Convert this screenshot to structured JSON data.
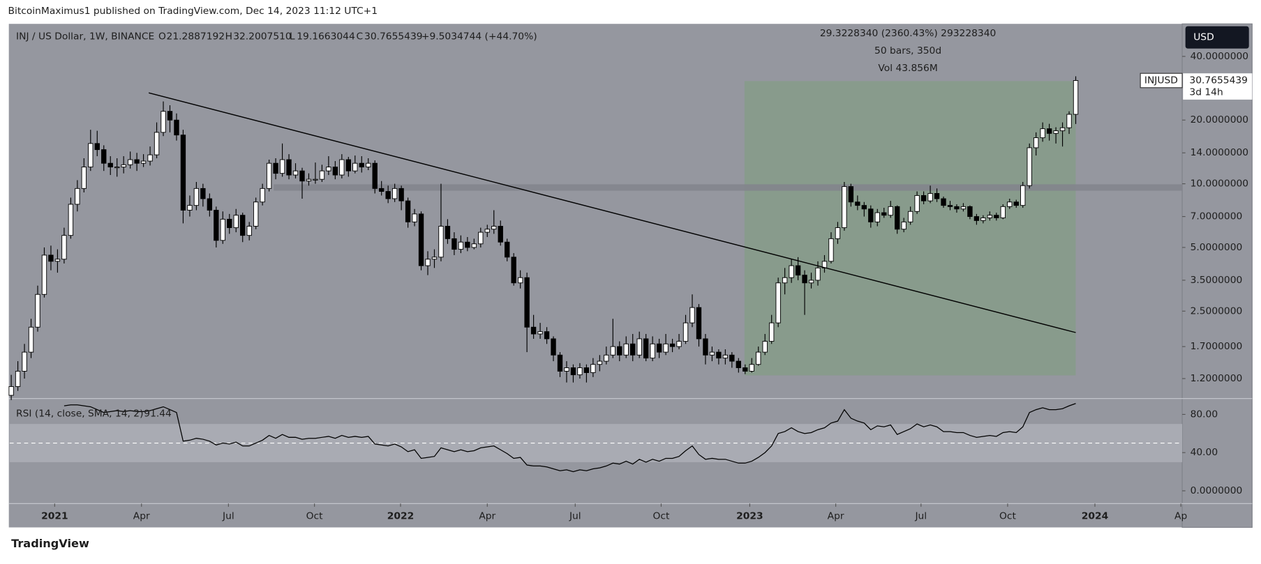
{
  "header": {
    "publisher": "BitcoinMaximus1 published on TradingView.com, Dec 14, 2023 11:12 UTC+1",
    "logo": "TradingView"
  },
  "chart_data": [
    {
      "type": "candlestick",
      "title": "INJ / US Dollar, 1W, BINANCE",
      "legend": {
        "o": "O",
        "open": "21.2887192",
        "h": "H",
        "high": "32.2007510",
        "l": "L",
        "low": "19.1663044",
        "c": "C",
        "close": "30.7655439",
        "change": "+9.5034744 (+44.70%)"
      },
      "currency": "USD",
      "price_tag": {
        "symbol": "INJUSD",
        "value": "30.7655439",
        "countdown": "3d 14h"
      },
      "up_color": "#ffffff",
      "down_color": "#000000",
      "log_scale": true,
      "grid": false,
      "ohlc": [
        [
          1.0,
          1.25,
          0.95,
          1.1
        ],
        [
          1.1,
          1.45,
          1.05,
          1.3
        ],
        [
          1.3,
          1.75,
          1.2,
          1.6
        ],
        [
          1.6,
          2.3,
          1.5,
          2.1
        ],
        [
          2.1,
          3.3,
          2.0,
          3.0
        ],
        [
          3.0,
          5.0,
          2.9,
          4.6
        ],
        [
          4.6,
          5.1,
          3.9,
          4.3
        ],
        [
          4.3,
          4.9,
          3.8,
          4.4
        ],
        [
          4.4,
          6.2,
          4.2,
          5.7
        ],
        [
          5.7,
          8.6,
          5.5,
          8.0
        ],
        [
          8.0,
          10.4,
          7.4,
          9.5
        ],
        [
          9.5,
          13.2,
          9.1,
          12.0
        ],
        [
          12.0,
          18.0,
          11.5,
          15.5
        ],
        [
          15.5,
          17.8,
          13.5,
          14.5
        ],
        [
          14.5,
          15.2,
          11.5,
          12.5
        ],
        [
          12.5,
          13.5,
          11.0,
          12.0
        ],
        [
          12.0,
          13.2,
          10.8,
          12.0
        ],
        [
          12.0,
          13.5,
          11.2,
          12.3
        ],
        [
          12.3,
          14.2,
          11.8,
          13.0
        ],
        [
          13.0,
          14.0,
          11.5,
          12.5
        ],
        [
          12.5,
          13.8,
          12.0,
          12.8
        ],
        [
          12.8,
          15.0,
          12.2,
          13.7
        ],
        [
          13.7,
          19.5,
          13.2,
          17.5
        ],
        [
          17.5,
          24.5,
          16.8,
          22.0
        ],
        [
          22.0,
          23.5,
          17.5,
          20.0
        ],
        [
          20.0,
          21.5,
          16.0,
          17.0
        ],
        [
          17.0,
          18.0,
          6.5,
          7.5
        ],
        [
          7.5,
          8.8,
          7.0,
          7.9
        ],
        [
          7.9,
          10.2,
          7.5,
          9.5
        ],
        [
          9.5,
          10.0,
          7.8,
          8.5
        ],
        [
          8.5,
          9.0,
          7.0,
          7.5
        ],
        [
          7.5,
          7.8,
          5.0,
          5.4
        ],
        [
          5.4,
          7.4,
          5.2,
          6.8
        ],
        [
          6.8,
          7.2,
          5.8,
          6.2
        ],
        [
          6.2,
          7.6,
          5.9,
          7.1
        ],
        [
          7.1,
          7.3,
          5.3,
          5.7
        ],
        [
          5.7,
          6.6,
          5.4,
          6.3
        ],
        [
          6.3,
          8.6,
          6.1,
          8.2
        ],
        [
          8.2,
          10.0,
          7.9,
          9.5
        ],
        [
          9.5,
          13.0,
          9.2,
          12.5
        ],
        [
          12.5,
          13.2,
          10.5,
          11.2
        ],
        [
          11.2,
          15.5,
          10.8,
          13.0
        ],
        [
          13.0,
          13.8,
          10.5,
          11.0
        ],
        [
          11.0,
          12.5,
          10.6,
          11.5
        ],
        [
          11.5,
          11.9,
          8.5,
          10.3
        ],
        [
          10.3,
          11.2,
          9.8,
          10.5
        ],
        [
          10.5,
          12.6,
          10.0,
          10.5
        ],
        [
          10.5,
          12.3,
          10.2,
          11.5
        ],
        [
          11.5,
          13.5,
          11.0,
          12.0
        ],
        [
          12.0,
          12.8,
          10.5,
          11.0
        ],
        [
          11.0,
          13.8,
          10.6,
          13.0
        ],
        [
          13.0,
          13.4,
          10.8,
          11.5
        ],
        [
          11.5,
          13.6,
          11.2,
          12.5
        ],
        [
          12.5,
          13.5,
          11.3,
          12.0
        ],
        [
          12.0,
          13.2,
          11.6,
          12.5
        ],
        [
          12.5,
          12.9,
          9.0,
          9.5
        ],
        [
          9.5,
          10.3,
          8.8,
          9.2
        ],
        [
          9.2,
          9.8,
          8.1,
          8.5
        ],
        [
          8.5,
          10.0,
          8.2,
          9.5
        ],
        [
          9.5,
          9.8,
          7.5,
          8.3
        ],
        [
          8.3,
          8.6,
          6.2,
          6.6
        ],
        [
          6.6,
          7.6,
          6.3,
          7.2
        ],
        [
          7.2,
          7.4,
          3.9,
          4.1
        ],
        [
          4.1,
          4.8,
          3.7,
          4.4
        ],
        [
          4.4,
          4.9,
          4.0,
          4.5
        ],
        [
          4.5,
          10.0,
          4.3,
          6.3
        ],
        [
          6.3,
          6.8,
          5.2,
          5.5
        ],
        [
          5.5,
          5.9,
          4.6,
          4.9
        ],
        [
          4.9,
          5.7,
          4.7,
          5.3
        ],
        [
          5.3,
          5.6,
          4.8,
          5.0
        ],
        [
          5.0,
          5.5,
          4.9,
          5.2
        ],
        [
          5.2,
          6.2,
          5.0,
          5.9
        ],
        [
          5.9,
          6.4,
          5.6,
          6.1
        ],
        [
          6.1,
          7.5,
          5.8,
          6.3
        ],
        [
          6.3,
          6.7,
          5.1,
          5.3
        ],
        [
          5.3,
          5.5,
          4.3,
          4.5
        ],
        [
          4.5,
          4.7,
          3.3,
          3.4
        ],
        [
          3.4,
          3.9,
          3.2,
          3.6
        ],
        [
          3.6,
          3.8,
          1.6,
          2.1
        ],
        [
          2.1,
          2.4,
          1.85,
          1.95
        ],
        [
          1.95,
          2.2,
          1.85,
          2.0
        ],
        [
          2.0,
          2.1,
          1.75,
          1.85
        ],
        [
          1.85,
          1.9,
          1.45,
          1.55
        ],
        [
          1.55,
          1.6,
          1.22,
          1.3
        ],
        [
          1.3,
          1.45,
          1.15,
          1.35
        ],
        [
          1.35,
          1.4,
          1.15,
          1.25
        ],
        [
          1.25,
          1.42,
          1.2,
          1.35
        ],
        [
          1.35,
          1.4,
          1.15,
          1.28
        ],
        [
          1.28,
          1.5,
          1.22,
          1.4
        ],
        [
          1.4,
          1.55,
          1.3,
          1.45
        ],
        [
          1.45,
          1.7,
          1.4,
          1.55
        ],
        [
          1.55,
          2.3,
          1.5,
          1.7
        ],
        [
          1.7,
          1.8,
          1.45,
          1.55
        ],
        [
          1.55,
          1.9,
          1.5,
          1.75
        ],
        [
          1.75,
          1.95,
          1.45,
          1.55
        ],
        [
          1.55,
          2.0,
          1.5,
          1.85
        ],
        [
          1.85,
          1.95,
          1.45,
          1.5
        ],
        [
          1.5,
          1.9,
          1.45,
          1.75
        ],
        [
          1.75,
          1.85,
          1.5,
          1.6
        ],
        [
          1.6,
          1.95,
          1.55,
          1.75
        ],
        [
          1.75,
          1.85,
          1.6,
          1.7
        ],
        [
          1.7,
          1.95,
          1.65,
          1.8
        ],
        [
          1.8,
          2.4,
          1.75,
          2.2
        ],
        [
          2.2,
          3.0,
          2.1,
          2.6
        ],
        [
          2.6,
          2.7,
          1.7,
          1.85
        ],
        [
          1.85,
          1.95,
          1.4,
          1.55
        ],
        [
          1.55,
          1.7,
          1.45,
          1.6
        ],
        [
          1.6,
          1.65,
          1.4,
          1.5
        ],
        [
          1.5,
          1.65,
          1.4,
          1.55
        ],
        [
          1.55,
          1.6,
          1.35,
          1.45
        ],
        [
          1.45,
          1.5,
          1.28,
          1.35
        ],
        [
          1.35,
          1.4,
          1.26,
          1.3
        ],
        [
          1.3,
          1.5,
          1.28,
          1.4
        ],
        [
          1.4,
          1.7,
          1.38,
          1.6
        ],
        [
          1.6,
          1.95,
          1.55,
          1.8
        ],
        [
          1.8,
          2.4,
          1.75,
          2.2
        ],
        [
          2.2,
          3.6,
          2.1,
          3.4
        ],
        [
          3.4,
          4.0,
          3.0,
          3.6
        ],
        [
          3.6,
          4.4,
          3.4,
          4.1
        ],
        [
          4.1,
          4.5,
          3.5,
          3.7
        ],
        [
          3.7,
          3.9,
          2.4,
          3.4
        ],
        [
          3.4,
          3.8,
          3.2,
          3.5
        ],
        [
          3.5,
          4.3,
          3.3,
          4.0
        ],
        [
          4.0,
          4.6,
          3.8,
          4.3
        ],
        [
          4.3,
          5.9,
          4.2,
          5.5
        ],
        [
          5.5,
          6.6,
          5.2,
          6.2
        ],
        [
          6.2,
          10.2,
          6.0,
          9.7
        ],
        [
          9.7,
          10.0,
          7.8,
          8.2
        ],
        [
          8.2,
          8.8,
          7.5,
          7.9
        ],
        [
          7.9,
          8.2,
          7.0,
          7.6
        ],
        [
          7.6,
          7.9,
          6.2,
          6.6
        ],
        [
          6.6,
          7.6,
          6.3,
          7.3
        ],
        [
          7.3,
          7.7,
          6.9,
          7.1
        ],
        [
          7.1,
          8.3,
          6.9,
          7.8
        ],
        [
          7.8,
          7.9,
          5.8,
          6.1
        ],
        [
          6.1,
          6.9,
          5.9,
          6.6
        ],
        [
          6.6,
          7.8,
          6.4,
          7.4
        ],
        [
          7.4,
          9.2,
          7.2,
          8.8
        ],
        [
          8.8,
          9.2,
          8.0,
          8.3
        ],
        [
          8.3,
          9.8,
          8.1,
          9.0
        ],
        [
          9.0,
          9.5,
          8.2,
          8.5
        ],
        [
          8.5,
          8.7,
          7.7,
          7.9
        ],
        [
          7.9,
          8.3,
          7.5,
          7.8
        ],
        [
          7.8,
          8.0,
          7.3,
          7.6
        ],
        [
          7.6,
          8.1,
          7.4,
          7.8
        ],
        [
          7.8,
          7.9,
          6.8,
          7.0
        ],
        [
          7.0,
          7.2,
          6.4,
          6.7
        ],
        [
          6.7,
          7.1,
          6.5,
          6.9
        ],
        [
          6.9,
          7.4,
          6.7,
          7.1
        ],
        [
          7.1,
          7.3,
          6.7,
          6.9
        ],
        [
          6.9,
          8.0,
          6.8,
          7.8
        ],
        [
          7.8,
          8.5,
          7.6,
          8.2
        ],
        [
          8.2,
          8.4,
          7.7,
          7.9
        ],
        [
          7.9,
          10.2,
          7.7,
          9.8
        ],
        [
          9.8,
          15.5,
          9.5,
          14.8
        ],
        [
          14.8,
          17.5,
          13.6,
          16.5
        ],
        [
          16.5,
          19.5,
          15.8,
          18.2
        ],
        [
          18.2,
          19.2,
          16.0,
          17.3
        ],
        [
          17.3,
          18.5,
          15.5,
          17.8
        ],
        [
          17.8,
          19.5,
          15.0,
          18.4
        ],
        [
          18.4,
          22.0,
          17.2,
          21.2887192
        ],
        [
          21.2887192,
          32.200751,
          19.1663044,
          30.7655439
        ]
      ],
      "xlim": [
        -0.24,
        177.1
      ],
      "xticks": [
        {
          "value": 6.57,
          "label": "2021"
        },
        {
          "value": 19.7,
          "label": "Apr"
        },
        {
          "value": 32.85,
          "label": "Jul"
        },
        {
          "value": 45.86,
          "label": "Oct"
        },
        {
          "value": 58.88,
          "label": "2022"
        },
        {
          "value": 72.0,
          "label": "Apr"
        },
        {
          "value": 85.3,
          "label": "Jul"
        },
        {
          "value": 98.3,
          "label": "Oct"
        },
        {
          "value": 111.7,
          "label": "2023"
        },
        {
          "value": 124.7,
          "label": "Apr"
        },
        {
          "value": 137.6,
          "label": "Jul"
        },
        {
          "value": 150.7,
          "label": "Oct"
        },
        {
          "value": 163.9,
          "label": "2024"
        },
        {
          "value": 176.9,
          "label": "Ap"
        }
      ],
      "ylim": [
        0.974,
        56.5
      ],
      "yticks": [
        {
          "value": 40,
          "label": "40.0000000"
        },
        {
          "value": 20,
          "label": "20.0000000"
        },
        {
          "value": 14,
          "label": "14.0000000"
        },
        {
          "value": 10,
          "label": "10.0000000"
        },
        {
          "value": 7,
          "label": "7.0000000"
        },
        {
          "value": 5,
          "label": "5.0000000"
        },
        {
          "value": 3.5,
          "label": "3.5000000"
        },
        {
          "value": 2.5,
          "label": "2.5000000"
        },
        {
          "value": 1.7,
          "label": "1.7000000"
        },
        {
          "value": 1.2,
          "label": "1.2000000"
        }
      ],
      "trendline": {
        "x": [
          20.8,
          161
        ],
        "y": [
          26.9,
          1.98
        ],
        "color": "#000000"
      },
      "support_level": {
        "x_start": 39.7,
        "value": 9.6,
        "color": "#82848c"
      },
      "measure": {
        "x": [
          110.9,
          161
        ],
        "y": [
          1.242,
          30.57
        ],
        "color": "#889b8c",
        "texts": [
          "29.3228340 (2360.43%) 293228340",
          "50 bars, 350d",
          "Vol 43.856M"
        ]
      }
    },
    {
      "type": "line",
      "title": "RSI (14, close, SMA, 14, 2)",
      "last_value": "91.44",
      "color": "#000000",
      "values": [
        null,
        null,
        null,
        null,
        null,
        null,
        null,
        null,
        89,
        90,
        90,
        89,
        88,
        85,
        82,
        83,
        84,
        83,
        84,
        83,
        83,
        84,
        86,
        88,
        85,
        82,
        52,
        53,
        55,
        54,
        52,
        48,
        50,
        49,
        51,
        47,
        47,
        50,
        53,
        58,
        55,
        59,
        56,
        56,
        54,
        55,
        55,
        56,
        57,
        55,
        58,
        56,
        57,
        56,
        57,
        49,
        48,
        47,
        49,
        46,
        41,
        43,
        34,
        35,
        36,
        45,
        43,
        41,
        43,
        41,
        42,
        45,
        46,
        47,
        43,
        39,
        34,
        35,
        27,
        26,
        26,
        25,
        23,
        21,
        22,
        20,
        22,
        21,
        23,
        24,
        26,
        29,
        28,
        31,
        28,
        33,
        30,
        33,
        31,
        34,
        34,
        36,
        42,
        47,
        38,
        33,
        34,
        33,
        33,
        31,
        29,
        29,
        31,
        35,
        40,
        47,
        60,
        62,
        66,
        62,
        60,
        61,
        64,
        66,
        71,
        73,
        85,
        76,
        73,
        71,
        64,
        68,
        67,
        69,
        59,
        62,
        65,
        70,
        67,
        69,
        67,
        62,
        62,
        61,
        61,
        58,
        56,
        57,
        58,
        57,
        61,
        62,
        61,
        67,
        82,
        85,
        87,
        85,
        85,
        86,
        89,
        91.44
      ],
      "ylim": [
        -12.5,
        95.8
      ],
      "yticks": [
        {
          "value": 80,
          "label": "80.00"
        },
        {
          "value": 40,
          "label": "40.00"
        },
        {
          "value": 0,
          "label": "0.0000000"
        }
      ],
      "band": [
        30,
        70
      ],
      "midline": 50
    }
  ]
}
